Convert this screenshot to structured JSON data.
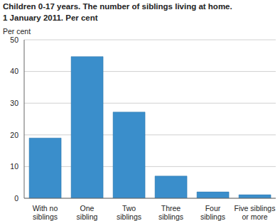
{
  "chart_data": {
    "type": "bar",
    "title": "Children 0-17 years. The number of siblings living at home.",
    "subtitle": "1 January 2011. Per cent",
    "y_label": "Per cent",
    "categories": [
      "With no siblings",
      "One sibling",
      "Two siblings",
      "Three siblings",
      "Four siblings",
      "Five siblings or more"
    ],
    "values": [
      19,
      44.7,
      27.2,
      7,
      2,
      1.1
    ],
    "color": "#3a8ecb",
    "ylim": [
      0,
      50
    ],
    "yticks": [
      0,
      10,
      20,
      30,
      40,
      50
    ],
    "grid": true
  }
}
